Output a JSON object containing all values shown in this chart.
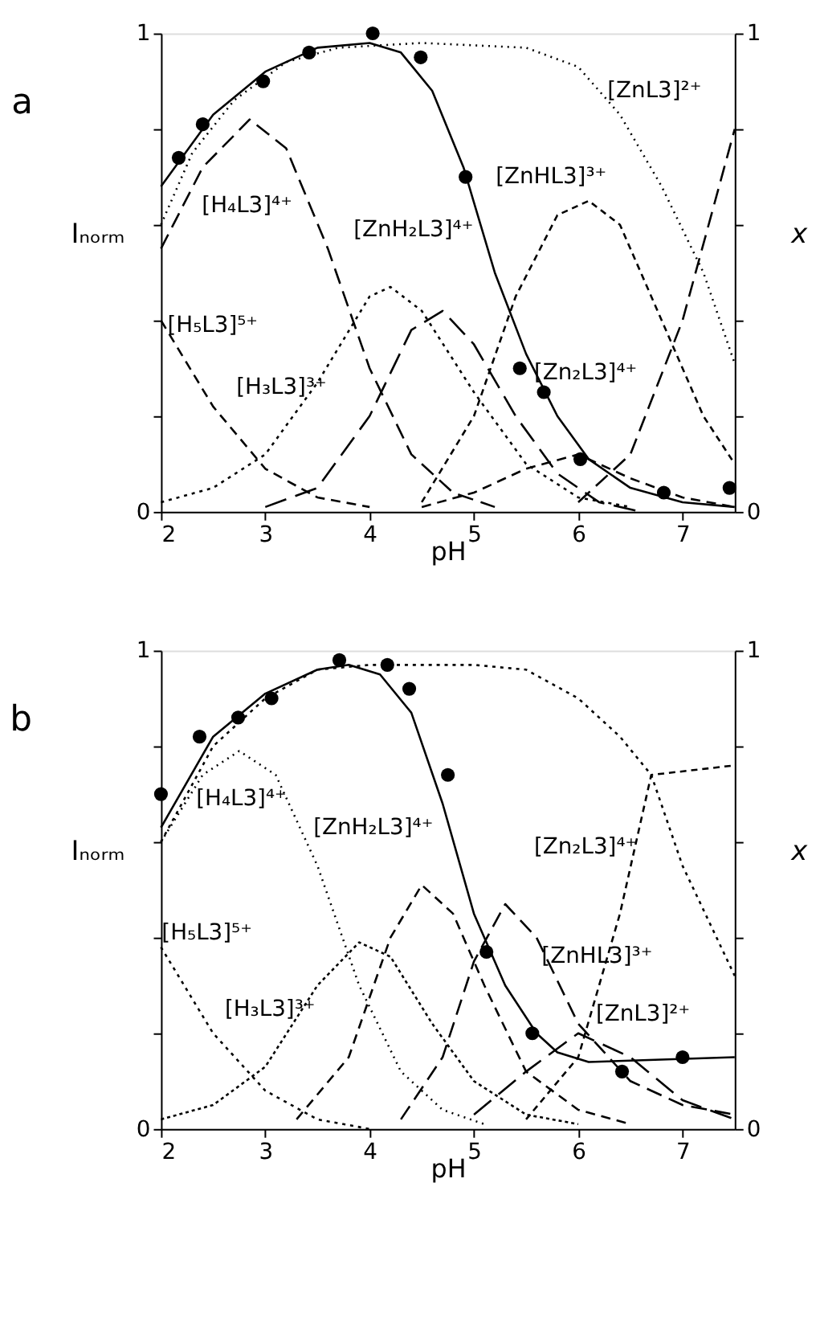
{
  "chart_data": [
    {
      "type": "line",
      "title": "a",
      "xlabel": "pH",
      "ylabel": "Iₙₒᵣₘ",
      "y2label": "x",
      "xlim": [
        2,
        7.5
      ],
      "xticks": [
        2,
        3,
        4,
        5,
        6,
        7
      ],
      "ylim": [
        0,
        1
      ],
      "yticks": [
        0,
        {
          "value": 0.2,
          "label": null
        },
        {
          "value": 0.4,
          "label": null
        },
        {
          "value": 0.6,
          "label": null
        },
        {
          "value": 0.8,
          "label": null
        },
        1
      ],
      "y2lim": [
        0,
        1
      ],
      "y2ticks": [
        0,
        {
          "value": 0.2,
          "label": null
        },
        {
          "value": 0.4,
          "label": null
        },
        {
          "value": 0.6,
          "label": null
        },
        {
          "value": 0.8,
          "label": null
        },
        1
      ],
      "grid": false,
      "series": [
        {
          "type": "scatter",
          "marker": "circle",
          "color": "#000000",
          "x": [
            2.17,
            2.4,
            2.98,
            3.42,
            4.03,
            4.49,
            4.92,
            5.44,
            5.67,
            6.02,
            6.82,
            7.45
          ],
          "values": [
            0.74,
            0.81,
            0.9,
            0.96,
            1.0,
            0.95,
            0.7,
            0.3,
            0.25,
            0.11,
            0.04,
            0.05
          ]
        },
        {
          "line_style": "solid",
          "color": "#000000",
          "x": [
            2,
            2.5,
            3,
            3.5,
            4,
            4.3,
            4.6,
            4.9,
            5.2,
            5.5,
            5.8,
            6.1,
            6.5,
            7,
            7.5
          ],
          "values": [
            0.68,
            0.83,
            0.92,
            0.97,
            0.98,
            0.96,
            0.88,
            0.72,
            0.5,
            0.33,
            0.2,
            0.11,
            0.05,
            0.02,
            0.01
          ]
        },
        {
          "type": "line",
          "axis": "y2",
          "line_style": "dashed",
          "color": "#000000",
          "x": [
            2,
            2.5,
            3,
            3.5,
            4
          ],
          "values": [
            0.4,
            0.22,
            0.09,
            0.03,
            0.01
          ]
        },
        {
          "type": "line",
          "axis": "y2",
          "line_style": "dashed",
          "color": "#000000",
          "x": [
            2,
            2.4,
            2.85,
            3.2,
            3.6,
            4,
            4.4,
            4.8,
            5.2
          ],
          "values": [
            0.55,
            0.72,
            0.82,
            0.76,
            0.55,
            0.3,
            0.12,
            0.04,
            0.01
          ]
        },
        {
          "type": "line",
          "axis": "y2",
          "line_style": "dotted",
          "color": "#000000",
          "x": [
            2,
            2.5,
            3,
            3.5,
            4,
            4.2,
            4.5,
            5,
            5.5,
            6,
            6.5
          ],
          "values": [
            0.02,
            0.05,
            0.12,
            0.27,
            0.45,
            0.47,
            0.42,
            0.25,
            0.1,
            0.03,
            0.01
          ]
        },
        {
          "type": "line",
          "axis": "y2",
          "line_style": "dotted",
          "color": "#000000",
          "x": [
            2,
            2.3,
            2.7,
            3.2,
            3.7,
            4.5,
            5.5,
            6,
            6.4,
            6.8,
            7.2,
            7.5
          ],
          "values": [
            0.6,
            0.75,
            0.86,
            0.94,
            0.97,
            0.98,
            0.97,
            0.93,
            0.83,
            0.68,
            0.5,
            0.31
          ]
        },
        {
          "type": "line",
          "axis": "y2",
          "line_style": "dashed",
          "color": "#000000",
          "x": [
            3,
            3.5,
            4,
            4.4,
            4.7,
            5,
            5.4,
            5.8,
            6.2,
            6.6
          ],
          "values": [
            0.01,
            0.05,
            0.2,
            0.38,
            0.42,
            0.35,
            0.2,
            0.08,
            0.02,
            0.0
          ]
        },
        {
          "type": "line",
          "axis": "y2",
          "line_style": "dashed",
          "color": "#000000",
          "x": [
            4.5,
            5,
            5.4,
            5.8,
            6.1,
            6.4,
            6.8,
            7.2,
            7.5
          ],
          "values": [
            0.02,
            0.2,
            0.45,
            0.62,
            0.65,
            0.6,
            0.4,
            0.2,
            0.1
          ]
        },
        {
          "type": "line",
          "axis": "y2",
          "line_style": "dashed",
          "color": "#000000",
          "x": [
            4.5,
            5,
            5.5,
            6,
            6.5,
            7,
            7.5
          ],
          "values": [
            0.01,
            0.04,
            0.09,
            0.12,
            0.07,
            0.03,
            0.01
          ]
        },
        {
          "type": "line",
          "axis": "y2",
          "line_style": "dashed",
          "color": "#000000",
          "x": [
            6,
            6.5,
            7,
            7.5
          ],
          "values": [
            0.02,
            0.12,
            0.4,
            0.8
          ]
        }
      ],
      "annotations": [
        "[ZnL3]²⁺",
        "[H₄L3]⁴⁺",
        "[ZnHL3]³⁺",
        "[ZnH₂L3]⁴⁺",
        "[H₅L3]⁵⁺",
        "[H₃L3]³⁺",
        "[Zn₂L3]⁴⁺"
      ]
    },
    {
      "type": "line",
      "title": "b",
      "xlabel": "pH",
      "ylabel": "Iₙₒᵣₘ",
      "y2label": "x",
      "xlim": [
        2,
        7.5
      ],
      "xticks": [
        2,
        3,
        4,
        5,
        6,
        7
      ],
      "ylim": [
        0,
        1
      ],
      "yticks": [
        0,
        {
          "value": 0.2,
          "label": null
        },
        {
          "value": 0.4,
          "label": null
        },
        {
          "value": 0.6,
          "label": null
        },
        {
          "value": 0.8,
          "label": null
        },
        1
      ],
      "y2lim": [
        0,
        1
      ],
      "y2ticks": [
        0,
        {
          "value": 0.2,
          "label": null
        },
        {
          "value": 0.4,
          "label": null
        },
        {
          "value": 0.6,
          "label": null
        },
        {
          "value": 0.8,
          "label": null
        },
        1
      ],
      "grid": false,
      "series": [
        {
          "type": "scatter",
          "marker": "circle",
          "color": "#000000",
          "x": [
            2.0,
            2.37,
            2.74,
            3.06,
            3.71,
            4.17,
            4.38,
            4.75,
            5.12,
            5.56,
            6.42,
            7.0
          ],
          "values": [
            0.7,
            0.82,
            0.86,
            0.9,
            0.98,
            0.97,
            0.92,
            0.74,
            0.37,
            0.2,
            0.12,
            0.15
          ]
        },
        {
          "line_style": "solid",
          "color": "#000000",
          "x": [
            2,
            2.5,
            3,
            3.5,
            3.8,
            4.1,
            4.4,
            4.7,
            5.0,
            5.3,
            5.6,
            5.8,
            6.1,
            7.5
          ],
          "values": [
            0.63,
            0.82,
            0.91,
            0.96,
            0.97,
            0.95,
            0.87,
            0.68,
            0.45,
            0.3,
            0.2,
            0.16,
            0.14,
            0.15
          ]
        },
        {
          "type": "line",
          "axis": "y2",
          "line_style": "dotted",
          "color": "#000000",
          "x": [
            2,
            2.5,
            3,
            3.5,
            4
          ],
          "values": [
            0.38,
            0.2,
            0.08,
            0.02,
            0.0
          ]
        },
        {
          "type": "line",
          "axis": "y2",
          "line_style": "dotted",
          "color": "#000000",
          "x": [
            2,
            2.4,
            2.75,
            3.1,
            3.5,
            3.9,
            4.3,
            4.7,
            5.1
          ],
          "values": [
            0.6,
            0.74,
            0.79,
            0.74,
            0.55,
            0.3,
            0.12,
            0.04,
            0.01
          ]
        },
        {
          "type": "line",
          "axis": "y2",
          "line_style": "dotted",
          "color": "#000000",
          "x": [
            2,
            2.5,
            3,
            3.5,
            3.9,
            4.2,
            4.6,
            5,
            5.5,
            6
          ],
          "values": [
            0.02,
            0.05,
            0.13,
            0.3,
            0.39,
            0.36,
            0.22,
            0.1,
            0.03,
            0.01
          ]
        },
        {
          "type": "line",
          "axis": "y2",
          "line_style": "dotted",
          "color": "#000000",
          "x": [
            2,
            2.5,
            3,
            3.5,
            4,
            5,
            5.5,
            6,
            6.4,
            6.7,
            7.0,
            7.5
          ],
          "values": [
            0.6,
            0.8,
            0.9,
            0.96,
            0.97,
            0.97,
            0.96,
            0.9,
            0.82,
            0.74,
            0.55,
            0.32
          ]
        },
        {
          "type": "line",
          "axis": "y2",
          "line_style": "dashed",
          "color": "#000000",
          "x": [
            3.3,
            3.8,
            4.2,
            4.5,
            4.8,
            5.1,
            5.5,
            6,
            6.5
          ],
          "values": [
            0.02,
            0.15,
            0.4,
            0.51,
            0.45,
            0.3,
            0.12,
            0.04,
            0.01
          ]
        },
        {
          "type": "line",
          "axis": "y2",
          "line_style": "dashed",
          "color": "#000000",
          "x": [
            4.3,
            4.7,
            5.0,
            5.3,
            5.6,
            6,
            6.5,
            7,
            7.5
          ],
          "values": [
            0.02,
            0.15,
            0.35,
            0.47,
            0.4,
            0.22,
            0.1,
            0.05,
            0.03
          ]
        },
        {
          "type": "line",
          "axis": "y2",
          "line_style": "dashed",
          "color": "#000000",
          "x": [
            5,
            5.5,
            6,
            6.5,
            7,
            7.5
          ],
          "values": [
            0.03,
            0.12,
            0.2,
            0.15,
            0.06,
            0.02
          ]
        },
        {
          "type": "line",
          "axis": "y2",
          "line_style": "dashed",
          "color": "#000000",
          "x": [
            5.5,
            6,
            6.4,
            6.7,
            7.5
          ],
          "values": [
            0.02,
            0.15,
            0.45,
            0.74,
            0.76
          ]
        }
      ],
      "annotations": [
        "[H₄L3]⁴⁺",
        "[ZnH₂L3]⁴⁺",
        "[Zn₂L3]⁴⁺",
        "[H₅L3]⁵⁺",
        "[H₃L3]³⁺",
        "[ZnHL3]³⁺",
        "[ZnL3]²⁺"
      ]
    }
  ]
}
